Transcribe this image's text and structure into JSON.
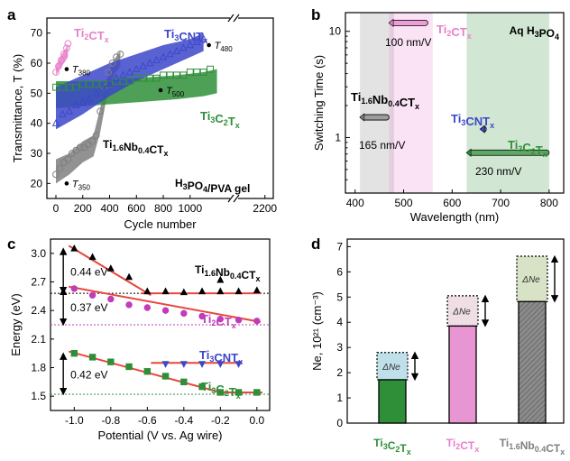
{
  "colors": {
    "pink": "#e87fcb",
    "blue": "#3c47c9",
    "gray": "#7f7f7f",
    "green": "#2f8f38",
    "red": "#e8463f",
    "black": "#000000"
  },
  "chart_data": [
    {
      "panel": "a",
      "type": "scatter",
      "xlabel": "Cycle number",
      "ylabel": "Transmittance, T (%)",
      "xlim": [
        -100,
        2250
      ],
      "ylim": [
        15,
        75
      ],
      "x_axis_break": [
        1250,
        2050
      ],
      "xticks": [
        "0",
        "200",
        "400",
        "600",
        "800",
        "1000",
        "2200"
      ],
      "yticks": [
        "20",
        "30",
        "40",
        "50",
        "60",
        "70"
      ],
      "annotation": "H₃PO₄/PVA gel",
      "series": [
        {
          "name": "Ti₂CTₓ",
          "color": "#e87fcb",
          "marker": "circle",
          "band_upper": [
            [
              0,
              59
            ],
            [
              30,
              62
            ],
            [
              60,
              64
            ],
            [
              90,
              66
            ]
          ],
          "band_lower": [
            [
              0,
              56
            ],
            [
              30,
              58
            ],
            [
              60,
              60
            ],
            [
              90,
              62
            ]
          ],
          "points": [
            [
              0,
              57
            ],
            [
              20,
              59
            ],
            [
              40,
              61
            ],
            [
              60,
              63
            ],
            [
              80,
              65
            ],
            [
              90,
              66.5
            ]
          ],
          "label_points": [
            {
              "label": "T380",
              "x": 80,
              "y": 58
            }
          ]
        },
        {
          "name": "Ti₃CNTₓ",
          "color": "#3c47c9",
          "marker": "triangle",
          "band_upper": [
            [
              0,
              52
            ],
            [
              200,
              56
            ],
            [
              400,
              60
            ],
            [
              600,
              63
            ],
            [
              800,
              66
            ],
            [
              1000,
              68
            ],
            [
              1100,
              70
            ]
          ],
          "band_lower": [
            [
              0,
              38
            ],
            [
              200,
              43
            ],
            [
              400,
              49
            ],
            [
              600,
              54
            ],
            [
              800,
              58
            ],
            [
              1000,
              62
            ],
            [
              1100,
              64
            ]
          ],
          "points": [
            [
              0,
              40
            ],
            [
              50,
              43
            ],
            [
              100,
              44
            ],
            [
              150,
              46
            ],
            [
              200,
              47
            ],
            [
              250,
              48
            ],
            [
              300,
              50
            ],
            [
              350,
              52
            ],
            [
              400,
              53
            ],
            [
              450,
              55
            ],
            [
              500,
              56
            ],
            [
              550,
              57
            ],
            [
              600,
              58
            ],
            [
              650,
              59
            ],
            [
              700,
              60
            ],
            [
              750,
              61
            ],
            [
              800,
              62
            ],
            [
              850,
              63
            ],
            [
              900,
              64
            ],
            [
              950,
              65
            ],
            [
              1000,
              66
            ],
            [
              1050,
              67
            ],
            [
              1100,
              68
            ]
          ],
          "label_points": [
            {
              "label": "T480",
              "x": 1140,
              "y": 66
            }
          ]
        },
        {
          "name": "Ti₃C₂Tₓ",
          "color": "#2f8f38",
          "marker": "square",
          "band_upper": [
            [
              0,
              54
            ],
            [
              300,
              54
            ],
            [
              600,
              55
            ],
            [
              900,
              56
            ],
            [
              1100,
              57
            ],
            [
              1200,
              58
            ]
          ],
          "band_lower": [
            [
              0,
              45
            ],
            [
              300,
              46
            ],
            [
              600,
              47
            ],
            [
              900,
              48
            ],
            [
              1100,
              49
            ],
            [
              1200,
              50
            ]
          ],
          "points": [
            [
              0,
              52
            ],
            [
              50,
              52
            ],
            [
              100,
              52
            ],
            [
              150,
              52
            ],
            [
              200,
              53
            ],
            [
              250,
              53
            ],
            [
              300,
              53
            ],
            [
              350,
              53
            ],
            [
              400,
              53
            ],
            [
              450,
              54
            ],
            [
              500,
              54
            ],
            [
              550,
              54
            ],
            [
              600,
              55
            ],
            [
              650,
              55
            ],
            [
              700,
              55
            ],
            [
              750,
              55
            ],
            [
              800,
              56
            ],
            [
              850,
              56
            ],
            [
              900,
              56
            ],
            [
              950,
              56
            ],
            [
              1000,
              57
            ],
            [
              1050,
              57
            ],
            [
              1100,
              57
            ],
            [
              1150,
              58
            ]
          ],
          "label_points": [
            {
              "label": "T500",
              "x": 780,
              "y": 51
            }
          ]
        },
        {
          "name": "Ti₁.₆Nb₀.₄CTₓ",
          "color": "#7f7f7f",
          "marker": "circle",
          "band_upper": [
            [
              0,
              28
            ],
            [
              100,
              30
            ],
            [
              200,
              34
            ],
            [
              280,
              36
            ],
            [
              330,
              45
            ],
            [
              380,
              55
            ],
            [
              430,
              61
            ],
            [
              480,
              64
            ]
          ],
          "band_lower": [
            [
              0,
              20
            ],
            [
              100,
              23
            ],
            [
              200,
              27
            ],
            [
              280,
              29
            ],
            [
              330,
              37
            ],
            [
              380,
              49
            ],
            [
              430,
              56
            ],
            [
              480,
              59
            ]
          ],
          "points": [
            [
              0,
              23
            ],
            [
              30,
              25
            ],
            [
              60,
              27
            ],
            [
              90,
              28
            ],
            [
              120,
              30
            ],
            [
              150,
              31
            ],
            [
              180,
              32
            ],
            [
              210,
              32
            ],
            [
              240,
              33
            ],
            [
              270,
              34
            ],
            [
              300,
              36
            ],
            [
              330,
              44
            ],
            [
              360,
              52
            ],
            [
              390,
              57
            ],
            [
              420,
              60
            ],
            [
              450,
              62
            ],
            [
              480,
              63
            ]
          ],
          "label_points": [
            {
              "label": "T350",
              "x": 80,
              "y": 20
            }
          ]
        }
      ]
    },
    {
      "panel": "b",
      "type": "scatter",
      "xlabel": "Wavelength (nm)",
      "ylabel": "Switching Time (s)",
      "xlim": [
        380,
        830
      ],
      "ylim": [
        0.3,
        15
      ],
      "yscale": "log",
      "xticks": [
        "400",
        "500",
        "600",
        "700",
        "800"
      ],
      "yticks": [
        "1",
        "10"
      ],
      "annotation": "Aq H₃PO₄",
      "shaded_regions": [
        {
          "color": "#7f7f7f",
          "x": [
            410,
            480
          ]
        },
        {
          "color": "#e87fcb",
          "x": [
            470,
            560
          ]
        },
        {
          "color": "#2f8f38",
          "x": [
            630,
            800
          ]
        }
      ],
      "series": [
        {
          "name": "Ti₂CTₓ",
          "color": "#e87fcb",
          "x_range": [
            475,
            550
          ],
          "y": 12,
          "rate_label": "100 nm/V"
        },
        {
          "name": "Ti₁.₆Nb₀.₄CTₓ",
          "color": "#7f7f7f",
          "x_range": [
            415,
            470
          ],
          "y": 1.55,
          "rate_label": "165 nm/V"
        },
        {
          "name": "Ti₃CNTₓ",
          "color": "#3c47c9",
          "x_range": [
            663,
            666
          ],
          "y": 1.2,
          "rate_label": ""
        },
        {
          "name": "Ti₃C₂Tₓ",
          "color": "#2f8f38",
          "x_range": [
            635,
            800
          ],
          "y": 0.72,
          "rate_label": "230 nm/V"
        }
      ]
    },
    {
      "panel": "c",
      "type": "scatter",
      "xlabel": "Potential (V vs. Ag wire)",
      "ylabel": "Energy (eV)",
      "xlim": [
        -1.13,
        0.07
      ],
      "ylim": [
        1.35,
        3.15
      ],
      "xticks": [
        "-1.0",
        "-0.8",
        "-0.6",
        "-0.4",
        "-0.2",
        "0.0"
      ],
      "yticks": [
        "1.5",
        "1.8",
        "2.1",
        "2.4",
        "2.7",
        "3.0"
      ],
      "series": [
        {
          "name": "Ti₁.₆Nb₀.₄CTₓ",
          "color": "#000000",
          "marker": "triangle",
          "shift": "0.44 eV",
          "baseline": 2.58,
          "fit_lines": [
            [
              [
                -1.03,
                3.08
              ],
              [
                -0.58,
                2.56
              ]
            ],
            [
              [
                -0.63,
                2.58
              ],
              [
                0.02,
                2.58
              ]
            ]
          ],
          "points": [
            [
              -1.0,
              3.05
            ],
            [
              -0.9,
              2.96
            ],
            [
              -0.8,
              2.84
            ],
            [
              -0.7,
              2.75
            ],
            [
              -0.6,
              2.6
            ],
            [
              -0.5,
              2.6
            ],
            [
              -0.4,
              2.59
            ],
            [
              -0.3,
              2.6
            ],
            [
              -0.2,
              2.6
            ],
            [
              -0.1,
              2.6
            ],
            [
              0.0,
              2.61
            ],
            [
              -0.2,
              2.72
            ]
          ]
        },
        {
          "name": "Ti₂CTₓ",
          "color": "#c03cb8",
          "marker": "circle",
          "shift": "0.37 eV",
          "baseline": 2.25,
          "fit_lines": [
            [
              [
                -1.03,
                2.65
              ],
              [
                0.02,
                2.28
              ]
            ]
          ],
          "points": [
            [
              -1.0,
              2.63
            ],
            [
              -0.9,
              2.56
            ],
            [
              -0.8,
              2.52
            ],
            [
              -0.7,
              2.46
            ],
            [
              -0.6,
              2.43
            ],
            [
              -0.5,
              2.4
            ],
            [
              -0.4,
              2.37
            ],
            [
              -0.3,
              2.34
            ],
            [
              -0.2,
              2.31
            ],
            [
              -0.1,
              2.3
            ],
            [
              0.0,
              2.29
            ]
          ]
        },
        {
          "name": "Ti₃CNTₓ",
          "color": "#3c47c9",
          "marker": "triangle-down",
          "shift": "",
          "baseline": null,
          "fit_lines": [
            [
              [
                -0.58,
                1.85
              ],
              [
                -0.08,
                1.85
              ]
            ]
          ],
          "points": [
            [
              -0.5,
              1.84
            ],
            [
              -0.4,
              1.84
            ],
            [
              -0.3,
              1.84
            ],
            [
              -0.2,
              1.84
            ],
            [
              -0.1,
              1.84
            ]
          ]
        },
        {
          "name": "Ti₃C₂Tₓ",
          "color": "#2f8f38",
          "marker": "square",
          "shift": "0.42 eV",
          "baseline": 1.52,
          "fit_lines": [
            [
              [
                -1.03,
                1.97
              ],
              [
                -0.18,
                1.53
              ]
            ],
            [
              [
                -0.22,
                1.54
              ],
              [
                0.03,
                1.54
              ]
            ]
          ],
          "points": [
            [
              -1.0,
              1.95
            ],
            [
              -0.9,
              1.91
            ],
            [
              -0.8,
              1.86
            ],
            [
              -0.7,
              1.81
            ],
            [
              -0.6,
              1.76
            ],
            [
              -0.5,
              1.71
            ],
            [
              -0.4,
              1.65
            ],
            [
              -0.3,
              1.6
            ],
            [
              -0.2,
              1.54
            ],
            [
              -0.1,
              1.54
            ],
            [
              0.0,
              1.54
            ]
          ]
        }
      ]
    },
    {
      "panel": "d",
      "type": "bar",
      "ylabel": "Ne, 10²¹ (cm⁻³)",
      "ylim": [
        0,
        7.3
      ],
      "yticks": [
        "0",
        "1",
        "2",
        "3",
        "4",
        "5",
        "6",
        "7"
      ],
      "delta_label": "ΔNe",
      "categories": [
        "Ti₃C₂Tₓ",
        "Ti₂CTₓ",
        "Ti₁.₆Nb₀.₄CTₓ"
      ],
      "category_colors": [
        "#2f8f38",
        "#e87fcb",
        "#7f7f7f"
      ],
      "delta_colors": [
        "#bfe0ea",
        "#efdfe4",
        "#d8e2c7"
      ],
      "values": [
        1.72,
        3.85,
        4.82
      ],
      "totals": [
        2.8,
        5.05,
        6.62
      ]
    }
  ]
}
